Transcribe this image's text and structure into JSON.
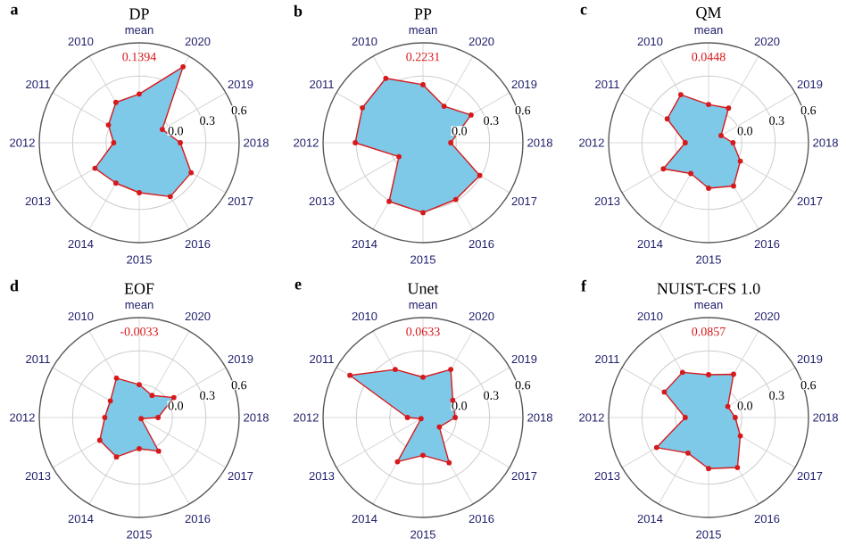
{
  "chart_data": [
    {
      "type": "radar",
      "title": "DP",
      "annotations": [
        "a",
        "0.1394"
      ],
      "categories": [
        "mean",
        "2020",
        "2019",
        "2018",
        "2017",
        "2016",
        "2015",
        "2014",
        "2013",
        "2012",
        "2011",
        "2010"
      ],
      "ylim": [
        -0.3,
        0.6
      ],
      "yticks": [
        {
          "value": 0,
          "label": "0.0"
        },
        {
          "value": 0.3,
          "label": "0.3"
        },
        {
          "value": 0.6,
          "label": "0.6"
        }
      ],
      "grid": true,
      "marker": "circle",
      "series": [
        {
          "color": "#d7191c",
          "values": [
            0.1394,
            0.49,
            -0.06,
            0.07,
            0.24,
            0.26,
            0.15,
            0.12,
            0.16,
            -0.07,
            0.02,
            0.12
          ]
        }
      ]
    },
    {
      "type": "radar",
      "title": "PP",
      "annotations": [
        "b",
        "0.2231"
      ],
      "categories": [
        "mean",
        "2020",
        "2019",
        "2018",
        "2017",
        "2016",
        "2015",
        "2014",
        "2013",
        "2012",
        "2011",
        "2010"
      ],
      "ylim": [
        -0.3,
        0.6
      ],
      "yticks": [
        {
          "value": 0,
          "label": "0.0"
        },
        {
          "value": 0.3,
          "label": "0.3"
        },
        {
          "value": 0.6,
          "label": "0.6"
        }
      ],
      "grid": true,
      "marker": "circle",
      "series": [
        {
          "color": "#d7191c",
          "values": [
            0.2231,
            0.08,
            0.2,
            -0.05,
            0.29,
            0.29,
            0.33,
            0.31,
            -0.05,
            0.31,
            0.33,
            0.37
          ]
        }
      ]
    },
    {
      "type": "radar",
      "title": "QM",
      "annotations": [
        "c",
        "0.0448"
      ],
      "categories": [
        "mean",
        "2020",
        "2019",
        "2018",
        "2017",
        "2016",
        "2015",
        "2014",
        "2013",
        "2012",
        "2011",
        "2010"
      ],
      "ylim": [
        -0.3,
        0.6
      ],
      "yticks": [
        {
          "value": 0,
          "label": "0.0"
        },
        {
          "value": 0.3,
          "label": "0.3"
        },
        {
          "value": 0.6,
          "label": "0.6"
        }
      ],
      "grid": true,
      "marker": "circle",
      "series": [
        {
          "color": "#d7191c",
          "values": [
            0.0448,
            0.06,
            -0.17,
            -0.08,
            0.03,
            0.15,
            0.11,
            0.02,
            0.17,
            -0.09,
            0.13,
            0.2
          ]
        }
      ]
    },
    {
      "type": "radar",
      "title": "EOF",
      "annotations": [
        "d",
        "-0.0033"
      ],
      "categories": [
        "mean",
        "2020",
        "2019",
        "2018",
        "2017",
        "2016",
        "2015",
        "2014",
        "2013",
        "2012",
        "2011",
        "2010"
      ],
      "ylim": [
        -0.3,
        0.6
      ],
      "yticks": [
        {
          "value": 0,
          "label": "0.0"
        },
        {
          "value": 0.3,
          "label": "0.3"
        },
        {
          "value": 0.6,
          "label": "0.6"
        }
      ],
      "grid": true,
      "marker": "circle",
      "series": [
        {
          "color": "#d7191c",
          "values": [
            -0.0033,
            -0.07,
            0.06,
            -0.13,
            -0.28,
            0.05,
            -0.02,
            0.11,
            0.11,
            0.01,
            0.0,
            0.11
          ]
        }
      ]
    },
    {
      "type": "radar",
      "title": "Unet",
      "annotations": [
        "e",
        "0.0633"
      ],
      "categories": [
        "mean",
        "2020",
        "2019",
        "2018",
        "2017",
        "2016",
        "2015",
        "2014",
        "2013",
        "2012",
        "2011",
        "2010"
      ],
      "ylim": [
        -0.3,
        0.6
      ],
      "yticks": [
        {
          "value": 0,
          "label": "0.0"
        },
        {
          "value": 0.3,
          "label": "0.3"
        },
        {
          "value": 0.6,
          "label": "0.6"
        }
      ],
      "grid": true,
      "marker": "circle",
      "series": [
        {
          "color": "#d7191c",
          "values": [
            0.0633,
            0.2,
            0.01,
            -0.01,
            -0.13,
            0.17,
            0.04,
            0.16,
            -0.28,
            -0.16,
            0.46,
            0.2
          ]
        }
      ]
    },
    {
      "type": "radar",
      "title": "NUIST-CFS 1.0",
      "annotations": [
        "f",
        "0.0857"
      ],
      "categories": [
        "mean",
        "2020",
        "2019",
        "2018",
        "2017",
        "2016",
        "2015",
        "2014",
        "2013",
        "2012",
        "2011",
        "2010"
      ],
      "ylim": [
        -0.3,
        0.6
      ],
      "yticks": [
        {
          "value": 0,
          "label": "0.0"
        },
        {
          "value": 0.3,
          "label": "0.3"
        },
        {
          "value": 0.6,
          "label": "0.6"
        }
      ],
      "grid": true,
      "marker": "circle",
      "series": [
        {
          "color": "#d7191c",
          "values": [
            0.0857,
            0.15,
            -0.1,
            -0.06,
            0.03,
            0.22,
            0.16,
            0.07,
            0.24,
            -0.09,
            0.16,
            0.17
          ]
        }
      ]
    }
  ]
}
